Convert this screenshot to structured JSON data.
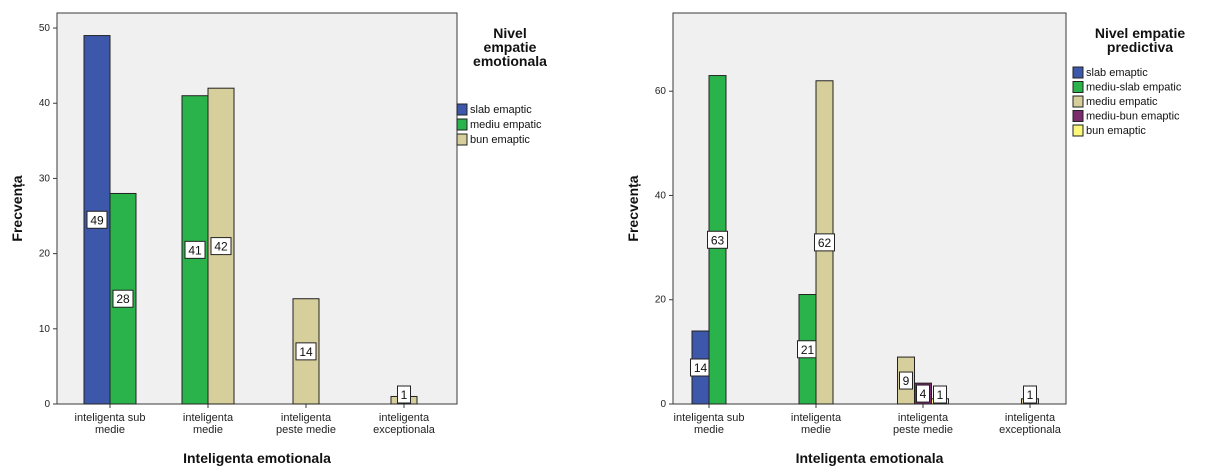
{
  "chart_data": [
    {
      "type": "bar",
      "title": "",
      "xlabel": "Inteligenta emotionala",
      "ylabel": "Frecvența",
      "ylim": [
        0,
        52
      ],
      "yticks": [
        0,
        10,
        20,
        30,
        40,
        50
      ],
      "grid": false,
      "categories": [
        "inteligenta sub medie",
        "inteligenta medie",
        "inteligenta peste medie",
        "inteligenta exceptionala"
      ],
      "category_lines": [
        [
          "inteligenta sub",
          "medie"
        ],
        [
          "inteligenta",
          "medie"
        ],
        [
          "inteligenta",
          "peste medie"
        ],
        [
          "inteligenta",
          "exceptionala"
        ]
      ],
      "legend": {
        "title_lines": [
          "Nivel",
          "empatie",
          "emotionala"
        ],
        "placement": "right"
      },
      "series": [
        {
          "name": "slab emaptic",
          "color": "#3d58aa",
          "values": [
            49,
            null,
            null,
            null
          ]
        },
        {
          "name": "mediu empatic",
          "color": "#2ab34a",
          "values": [
            28,
            41,
            null,
            null
          ]
        },
        {
          "name": "bun emaptic",
          "color": "#d6cf9b",
          "values": [
            null,
            42,
            14,
            1
          ]
        }
      ]
    },
    {
      "type": "bar",
      "title": "",
      "xlabel": "Inteligenta emotionala",
      "ylabel": "Frecvența",
      "ylim": [
        0,
        75
      ],
      "yticks": [
        0,
        20,
        40,
        60
      ],
      "grid": false,
      "categories": [
        "inteligenta sub medie",
        "inteligenta medie",
        "inteligenta peste medie",
        "inteligenta exceptionala"
      ],
      "category_lines": [
        [
          "inteligenta sub",
          "medie"
        ],
        [
          "inteligenta",
          "medie"
        ],
        [
          "inteligenta",
          "peste medie"
        ],
        [
          "inteligenta",
          "exceptionala"
        ]
      ],
      "legend": {
        "title_lines": [
          "Nivel empatie",
          "predictiva"
        ],
        "placement": "right"
      },
      "series": [
        {
          "name": "slab emaptic",
          "color": "#3d58aa",
          "values": [
            14,
            null,
            null,
            null
          ]
        },
        {
          "name": "mediu-slab empatic",
          "color": "#2ab34a",
          "values": [
            63,
            21,
            null,
            null
          ]
        },
        {
          "name": "mediu empatic",
          "color": "#d6cf9b",
          "values": [
            null,
            62,
            9,
            1
          ]
        },
        {
          "name": "mediu-bun emaptic",
          "color": "#7b2a6e",
          "values": [
            null,
            null,
            4,
            null
          ]
        },
        {
          "name": "bun emaptic",
          "color": "#fcf87a",
          "values": [
            null,
            null,
            1,
            null
          ]
        }
      ]
    }
  ]
}
